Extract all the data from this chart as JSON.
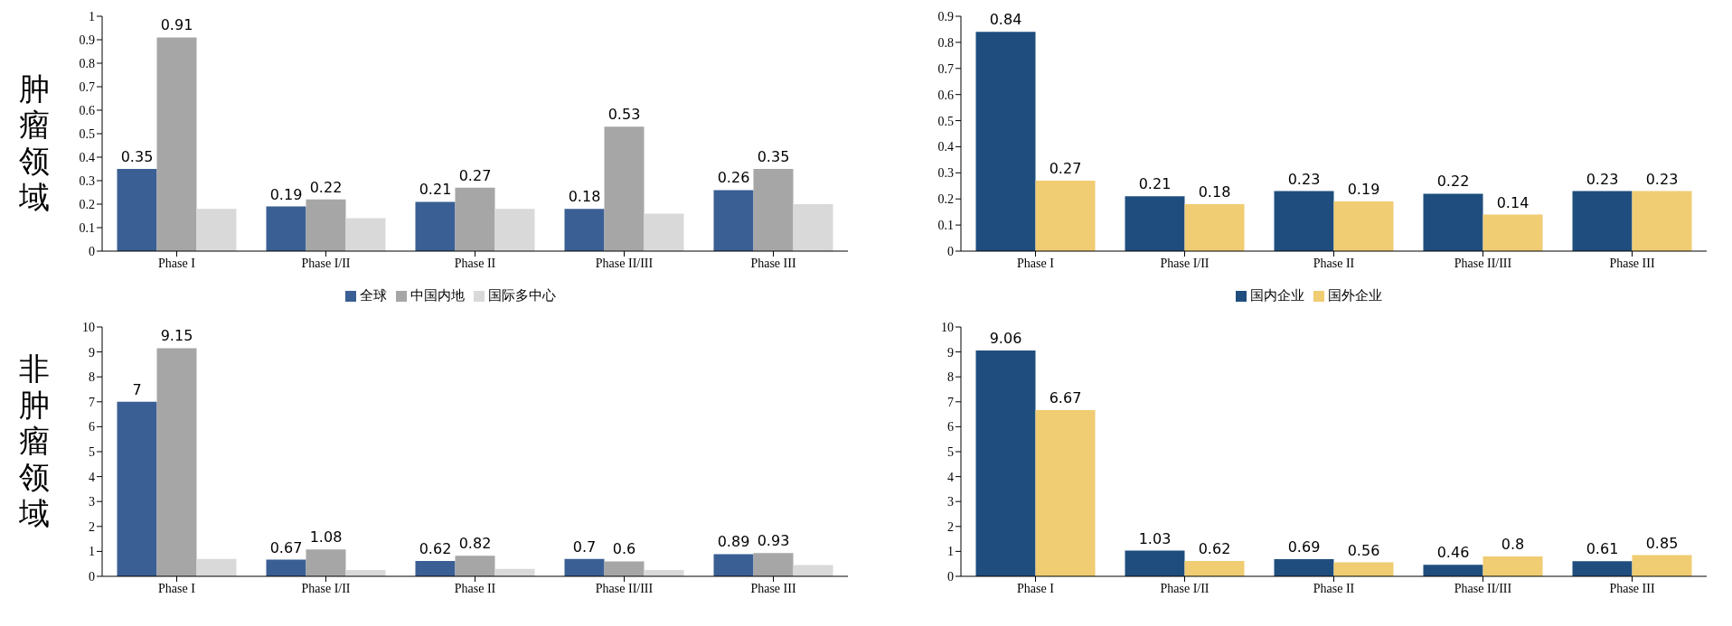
{
  "chart_data": [
    {
      "type": "bar",
      "ylabel": "肿瘤领域",
      "categories": [
        "Phase I",
        "Phase I/II",
        "Phase II",
        "Phase II/III",
        "Phase III"
      ],
      "ylim": [
        0,
        1
      ],
      "yticks": [
        0,
        0.1,
        0.2,
        0.3,
        0.4,
        0.5,
        0.6,
        0.7,
        0.8,
        0.9,
        1
      ],
      "series": [
        {
          "color": "#3a5f94",
          "values": [
            0.35,
            0.19,
            0.21,
            0.18,
            0.26
          ],
          "value_labels": [
            "0.35",
            "0.19",
            "0.21",
            "0.18",
            "0.26"
          ]
        },
        {
          "color": "#a6a6a6",
          "values": [
            0.91,
            0.22,
            0.27,
            0.53,
            0.35
          ],
          "value_labels": [
            "0.91",
            "0.22",
            "0.27",
            "0.53",
            "0.35"
          ]
        },
        {
          "color": "#d9d9d9",
          "values": [
            0.18,
            0.14,
            0.18,
            0.16,
            0.2
          ]
        }
      ]
    },
    {
      "type": "bar",
      "categories": [
        "Phase I",
        "Phase I/II",
        "Phase II",
        "Phase II/III",
        "Phase III"
      ],
      "ylim": [
        0,
        0.9
      ],
      "yticks": [
        0,
        0.1,
        0.2,
        0.3,
        0.4,
        0.5,
        0.6,
        0.7,
        0.8,
        0.9
      ],
      "data_labels": true,
      "series": [
        {
          "color": "#1f4e7e",
          "values": [
            0.84,
            0.21,
            0.23,
            0.22,
            0.23
          ]
        },
        {
          "color": "#f0cc72",
          "values": [
            0.27,
            0.18,
            0.19,
            0.14,
            0.23
          ]
        }
      ]
    },
    {
      "type": "bar",
      "ylabel": "非肿瘤领域",
      "legend": "top",
      "categories": [
        "Phase I",
        "Phase I/II",
        "Phase II",
        "Phase II/III",
        "Phase III"
      ],
      "ylim": [
        0,
        10
      ],
      "yticks": [
        0,
        1,
        2,
        3,
        4,
        5,
        6,
        7,
        8,
        9,
        10
      ],
      "series": [
        {
          "name": "全球",
          "color": "#3a5f94",
          "values": [
            7,
            0.67,
            0.62,
            0.7,
            0.89
          ],
          "value_labels": [
            "7",
            "0.67",
            "0.62",
            "0.7",
            "0.89"
          ]
        },
        {
          "name": "中国内地",
          "color": "#a6a6a6",
          "values": [
            9.15,
            1.08,
            0.82,
            0.6,
            0.93
          ],
          "value_labels": [
            "9.15",
            "1.08",
            "0.82",
            "0.6",
            "0.93"
          ]
        },
        {
          "name": "国际多中心",
          "color": "#d9d9d9",
          "values": [
            0.7,
            0.25,
            0.3,
            0.25,
            0.45
          ]
        }
      ]
    },
    {
      "type": "bar",
      "legend": "top",
      "categories": [
        "Phase I",
        "Phase I/II",
        "Phase II",
        "Phase II/III",
        "Phase III"
      ],
      "ylim": [
        0,
        10
      ],
      "yticks": [
        0,
        1,
        2,
        3,
        4,
        5,
        6,
        7,
        8,
        9,
        10
      ],
      "data_labels": true,
      "series": [
        {
          "name": "国内企业",
          "color": "#1f4e7e",
          "values": [
            9.06,
            1.03,
            0.69,
            0.46,
            0.61
          ]
        },
        {
          "name": "国外企业",
          "color": "#f0cc72",
          "values": [
            6.67,
            0.62,
            0.56,
            0.8,
            0.85
          ]
        }
      ]
    }
  ]
}
